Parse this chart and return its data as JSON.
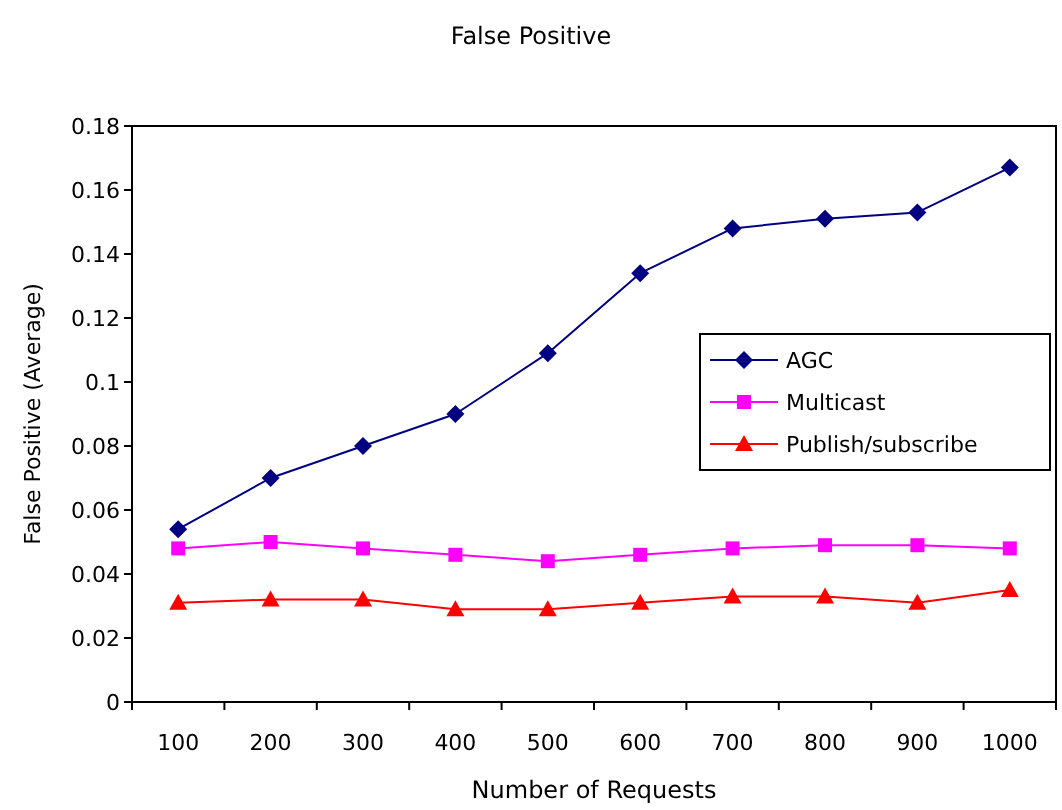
{
  "chart_data": {
    "type": "line",
    "title": "False Positive",
    "xlabel": "Number of Requests",
    "ylabel": "False Positive (Average)",
    "categories": [
      "100",
      "200",
      "300",
      "400",
      "500",
      "600",
      "700",
      "800",
      "900",
      "1000"
    ],
    "ylim": [
      0,
      0.18
    ],
    "yticks": [
      0,
      0.02,
      0.04,
      0.06,
      0.08,
      0.1,
      0.12,
      0.14,
      0.16,
      0.18
    ],
    "grid": false,
    "legend": "right",
    "series": [
      {
        "name": "AGC",
        "color": "#000080",
        "marker": "diamond",
        "values": [
          0.054,
          0.07,
          0.08,
          0.09,
          0.109,
          0.134,
          0.148,
          0.151,
          0.153,
          0.167
        ]
      },
      {
        "name": "Multicast",
        "color": "#ff00ff",
        "marker": "square",
        "values": [
          0.048,
          0.05,
          0.048,
          0.046,
          0.044,
          0.046,
          0.048,
          0.049,
          0.049,
          0.048
        ]
      },
      {
        "name": "Publish/subscribe",
        "color": "#ff0000",
        "marker": "triangle",
        "values": [
          0.031,
          0.032,
          0.032,
          0.029,
          0.029,
          0.031,
          0.033,
          0.033,
          0.031,
          0.035
        ]
      }
    ]
  }
}
